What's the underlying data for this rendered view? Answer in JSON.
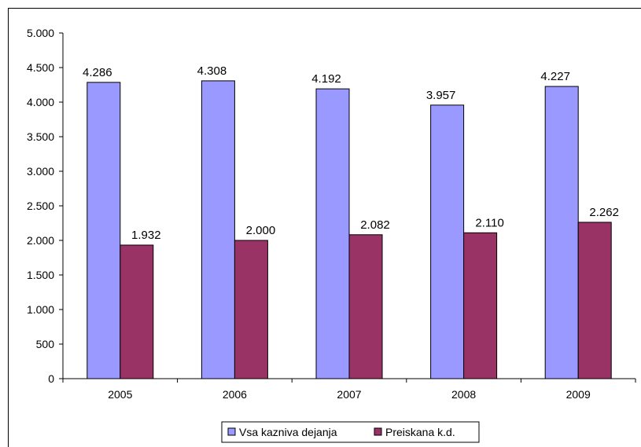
{
  "chart_data": {
    "type": "bar",
    "title": "",
    "xlabel": "",
    "ylabel": "",
    "categories": [
      "2005",
      "2006",
      "2007",
      "2008",
      "2009"
    ],
    "series": [
      {
        "name": "Vsa kazniva dejanja",
        "values": [
          4286,
          4308,
          4192,
          3957,
          4227
        ],
        "labels": [
          "4.286",
          "4.308",
          "4.192",
          "3.957",
          "4.227"
        ],
        "color": "#9999FF"
      },
      {
        "name": "Preiskana k.d.",
        "values": [
          1932,
          2000,
          2082,
          2110,
          2262
        ],
        "labels": [
          "1.932",
          "2.000",
          "2.082",
          "2.110",
          "2.262"
        ],
        "color": "#993366"
      }
    ],
    "ylim": [
      0,
      5000
    ],
    "yticks": [
      0,
      500,
      1000,
      1500,
      2000,
      2500,
      3000,
      3500,
      4000,
      4500,
      5000
    ],
    "ytick_labels": [
      "0",
      "500",
      "1.000",
      "1.500",
      "2.000",
      "2.500",
      "3.000",
      "3.500",
      "4.000",
      "4.500",
      "5.000"
    ],
    "grid": false,
    "legend": "bottom"
  }
}
